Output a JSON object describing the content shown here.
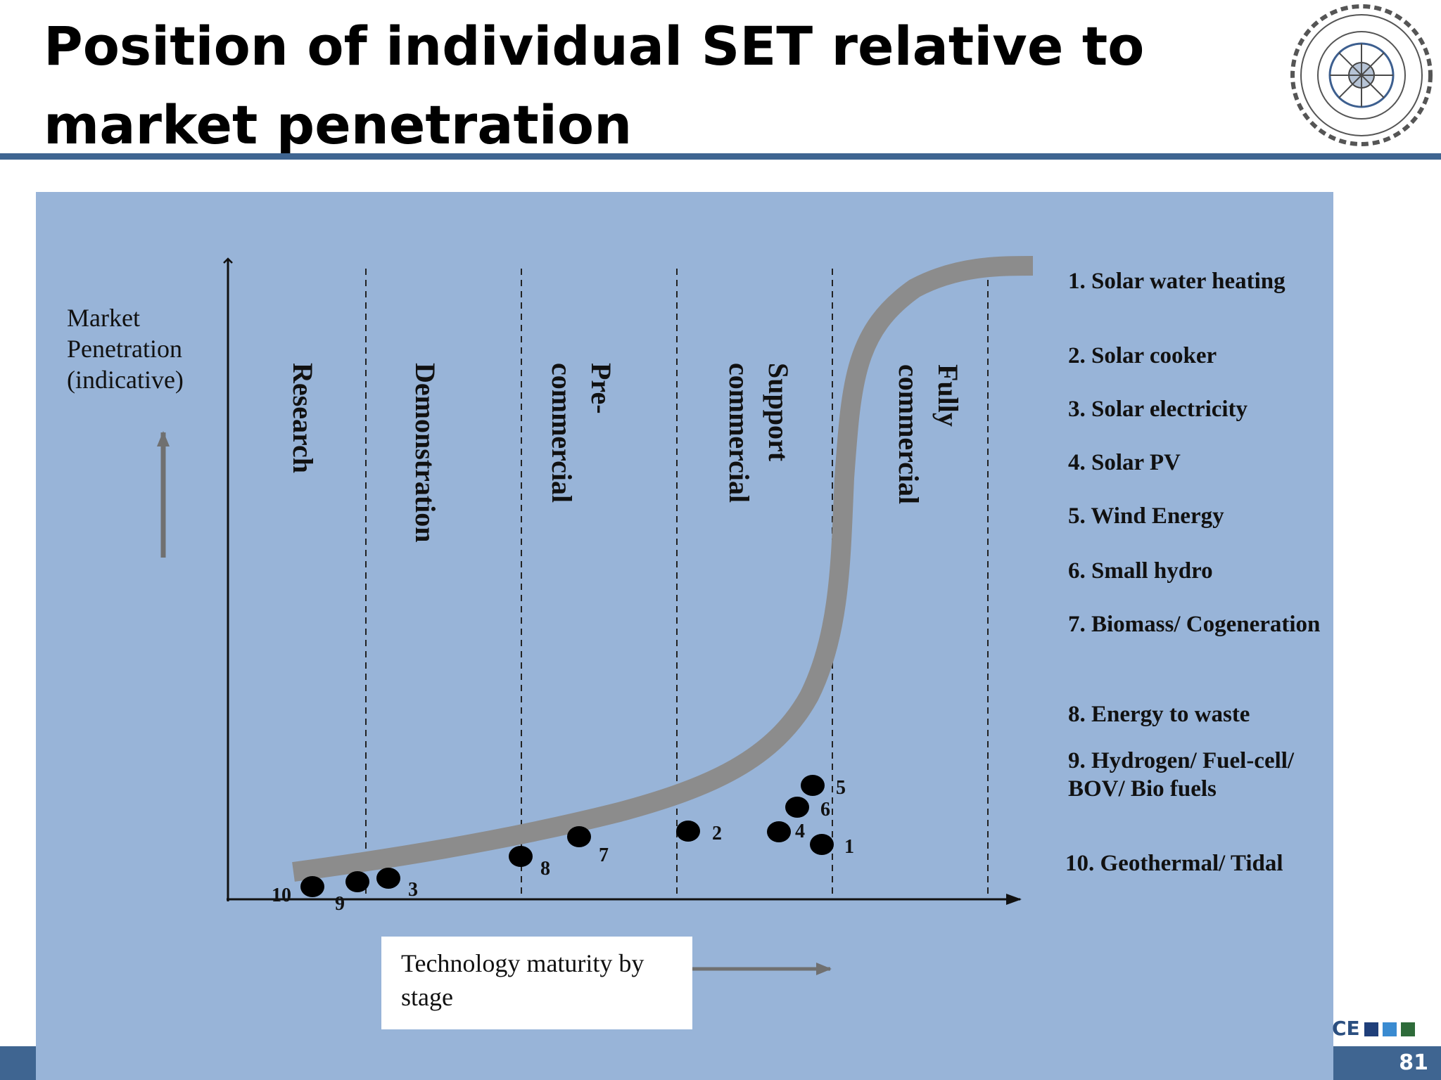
{
  "slide": {
    "title": "Position of individual SET relative to market penetration",
    "page_number": "81",
    "footer_mark": "CE"
  },
  "diagram": {
    "y_axis_label": "Market Penetration (indicative)",
    "x_axis_label": "Technology maturity by stage",
    "stages": [
      "Research",
      "Demonstration",
      "Pre-\ncommercial",
      "Support\ncommercial",
      "Fully\ncommercial"
    ],
    "legend": [
      "1. Solar water heating",
      "2. Solar cooker",
      "3. Solar electricity",
      "4. Solar PV",
      "5. Wind Energy",
      "6. Small hydro",
      "7. Biomass/ Cogeneration",
      "8. Energy to waste",
      "9. Hydrogen/ Fuel-cell/ BOV/ Bio fuels",
      "10. Geothermal/ Tidal"
    ],
    "technologies": [
      {
        "id": "1",
        "label": "1"
      },
      {
        "id": "2",
        "label": "2"
      },
      {
        "id": "3",
        "label": "3"
      },
      {
        "id": "4",
        "label": "4"
      },
      {
        "id": "5",
        "label": "5"
      },
      {
        "id": "6",
        "label": "6"
      },
      {
        "id": "7",
        "label": "7"
      },
      {
        "id": "8",
        "label": "8"
      },
      {
        "id": "9",
        "label": "9"
      },
      {
        "id": "10",
        "label": "10"
      }
    ]
  },
  "colors": {
    "panel_background": "#98b4d8",
    "curve": "#8c8c8c",
    "title_rule": "#3f6591",
    "points": "#000000"
  }
}
